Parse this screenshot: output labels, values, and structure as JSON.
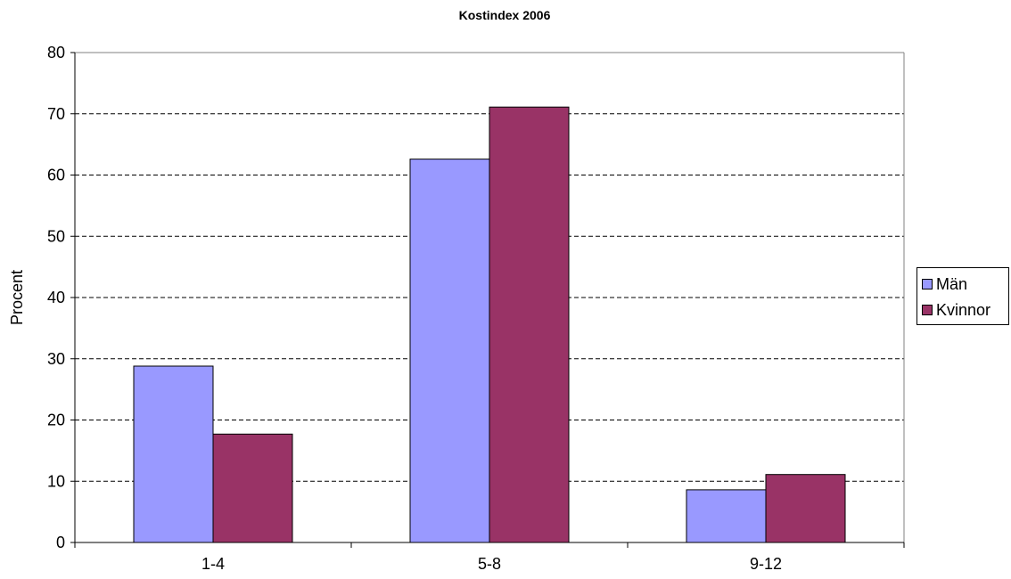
{
  "chart_data": {
    "type": "bar",
    "title": "Kostindex 2006",
    "xlabel": "",
    "ylabel": "Procent",
    "categories": [
      "1-4",
      "5-8",
      "9-12"
    ],
    "series": [
      {
        "name": "Män",
        "values": [
          28.8,
          62.6,
          8.6
        ],
        "color": "#9999ff"
      },
      {
        "name": "Kvinnor",
        "values": [
          17.7,
          71.1,
          11.1
        ],
        "color": "#993366"
      }
    ],
    "ylim": [
      0,
      80
    ],
    "yticks": [
      0,
      10,
      20,
      30,
      40,
      50,
      60,
      70,
      80
    ],
    "grid": true,
    "legend_position": "right"
  }
}
